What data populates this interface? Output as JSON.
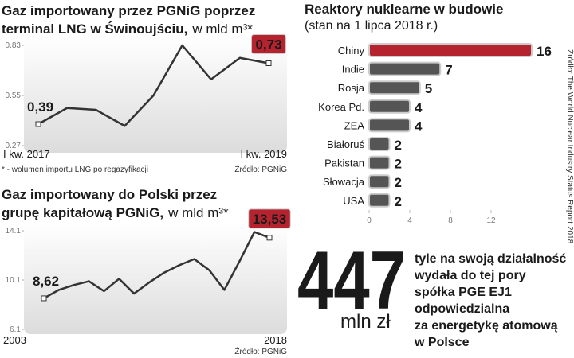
{
  "chart_data": [
    {
      "type": "line",
      "title": [
        "Gaz importowany przez PGNiG poprzez",
        "terminal LNG w Świnoujściu,"
      ],
      "unit": "w mld m³*",
      "categories": [
        "I kw. 2017",
        null,
        null,
        null,
        null,
        null,
        null,
        null,
        "I kw. 2019"
      ],
      "values": [
        0.39,
        0.48,
        0.47,
        0.38,
        0.55,
        0.83,
        0.64,
        0.76,
        0.73
      ],
      "value_labels": [
        "0,39",
        null,
        null,
        null,
        null,
        null,
        null,
        null,
        "0,73"
      ],
      "ylim": [
        0.27,
        0.83
      ],
      "yticks": [
        0.27,
        0.55,
        0.83
      ],
      "color": "#333333",
      "highlight_color": "#b5232f",
      "footnote": "* - wolumen importu LNG po regazyfikacji",
      "source": "Źródło: PGNiG"
    },
    {
      "type": "line",
      "title": [
        "Gaz importowany do Polski przez",
        "grupę kapitałową PGNiG,"
      ],
      "unit": "w mld m³*",
      "categories": [
        "2003",
        null,
        null,
        null,
        null,
        null,
        null,
        null,
        null,
        null,
        null,
        null,
        null,
        null,
        null,
        "2018"
      ],
      "values": [
        8.62,
        9.3,
        9.7,
        10.0,
        9.2,
        10.2,
        9.0,
        9.9,
        10.7,
        11.3,
        11.8,
        10.9,
        9.3,
        11.6,
        14.0,
        13.53
      ],
      "value_labels": [
        "8,62",
        null,
        null,
        null,
        null,
        null,
        null,
        null,
        null,
        null,
        null,
        null,
        null,
        null,
        null,
        "13,53"
      ],
      "ylim": [
        6.1,
        14.1
      ],
      "yticks": [
        6.1,
        10.1,
        14.1
      ],
      "color": "#333333",
      "highlight_color": "#b5232f",
      "source": "Źródło: PGNiG"
    },
    {
      "type": "hbar",
      "title": "Reaktory nuklearne w budowie",
      "subtitle": "(stan na 1 lipca 2018 r.)",
      "categories": [
        "Chiny",
        "Indie",
        "Rosja",
        "Korea Pd.",
        "ZEA",
        "Białoruś",
        "Pakistan",
        "Słowacja",
        "USA"
      ],
      "values": [
        16,
        7,
        5,
        4,
        4,
        2,
        2,
        2,
        2
      ],
      "colors": [
        "#b5232f",
        "#555555",
        "#555555",
        "#555555",
        "#555555",
        "#555555",
        "#555555",
        "#555555",
        "#555555"
      ],
      "xlim": [
        0,
        16
      ],
      "xticks": [
        0,
        4,
        8,
        12
      ],
      "source": "Źródło: The World Nuclear Industry Status Report 2018"
    }
  ],
  "callout": {
    "number": "447",
    "unit": "mln zł",
    "text": [
      "tyle na swoją działalność",
      "wydała do tej pory",
      "spółka PGE EJ1",
      "odpowiedzialna",
      "za energetykę atomową",
      "w Polsce"
    ],
    "color": "#b5232f"
  }
}
